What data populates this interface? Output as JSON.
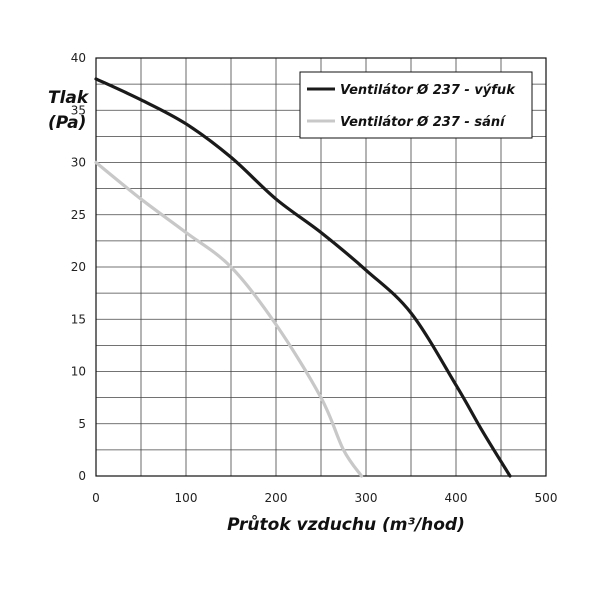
{
  "chart_data": {
    "type": "line",
    "title": "",
    "xlabel": "Průtok vzduchu (m³/hod)",
    "ylabel_line1": "Tlak",
    "ylabel_line2": "(Pa)",
    "xlim": [
      0,
      500
    ],
    "ylim": [
      0,
      40
    ],
    "x_ticks": [
      0,
      100,
      200,
      300,
      400,
      500
    ],
    "y_ticks": [
      0,
      5,
      10,
      15,
      20,
      25,
      30,
      35,
      40
    ],
    "x_grid_step": 50,
    "y_grid_step": 2.5,
    "grid": true,
    "legend_position": "top-right",
    "series": [
      {
        "name": "Ventilátor Ø 237 - výfuk",
        "color": "#1a1a1a",
        "x": [
          0,
          50,
          100,
          150,
          200,
          250,
          300,
          350,
          400,
          430,
          460
        ],
        "y": [
          38,
          36,
          33.7,
          30.5,
          26.5,
          23.3,
          19.7,
          15.6,
          8.7,
          4.2,
          0
        ]
      },
      {
        "name": "Ventilátor Ø 237 - sání",
        "color": "#c8c8c8",
        "x": [
          0,
          50,
          100,
          150,
          200,
          250,
          275,
          295
        ],
        "y": [
          30,
          26.5,
          23.3,
          20,
          14.5,
          7.5,
          2.5,
          0
        ]
      }
    ]
  }
}
